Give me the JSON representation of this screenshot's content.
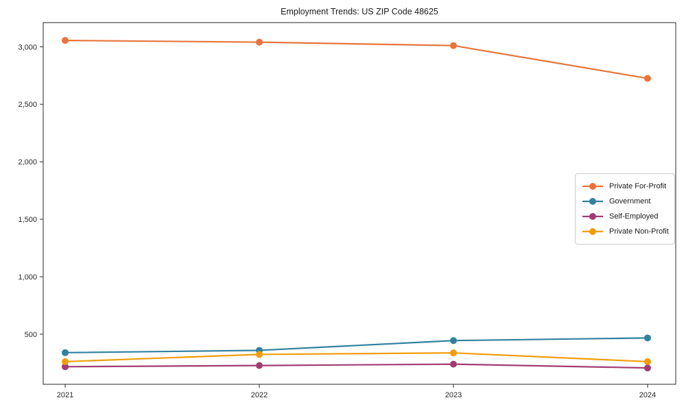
{
  "page": {
    "kind": "line-chart-figure"
  },
  "chart_data": {
    "type": "line",
    "title": "Employment Trends: US ZIP Code 48625",
    "x": [
      "2021",
      "2022",
      "2023",
      "2024"
    ],
    "series": [
      {
        "name": "Private For-Profit",
        "color": "#E8743B",
        "values": [
          3055,
          3040,
          3010,
          2725
        ]
      },
      {
        "name": "Government",
        "color": "#31809F",
        "values": [
          340,
          360,
          445,
          468
        ]
      },
      {
        "name": "Self-Employed",
        "color": "#A23B72",
        "values": [
          218,
          228,
          240,
          207
        ]
      },
      {
        "name": "Private Non-Profit",
        "color": "#F09D0C",
        "values": [
          262,
          325,
          338,
          262
        ]
      }
    ],
    "xlabel": "",
    "ylabel": "",
    "ylim": [
      65,
      3210
    ],
    "yticks": [
      500,
      1000,
      1500,
      2000,
      2500,
      3000
    ],
    "grid": false,
    "legend_position": "right-center",
    "marker": "circle",
    "axis_color": "#262626"
  }
}
